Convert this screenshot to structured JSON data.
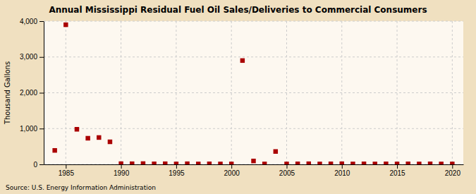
{
  "chart_data": {
    "type": "scatter",
    "title": "Annual Mississippi Residual Fuel Oil Sales/Deliveries to Commercial Consumers",
    "y_label": "Thousand Gallons",
    "annotations": [
      "Source: U.S. Energy Information Administration"
    ],
    "x": [
      1984,
      1985,
      1986,
      1987,
      1988,
      1989,
      1990,
      1991,
      1992,
      1993,
      1994,
      1995,
      1996,
      1997,
      1998,
      1999,
      2000,
      2001,
      2002,
      2003,
      2004,
      2005,
      2006,
      2007,
      2008,
      2009,
      2010,
      2011,
      2012,
      2013,
      2014,
      2015,
      2016,
      2017,
      2018,
      2019,
      2020
    ],
    "values": [
      390,
      3900,
      980,
      730,
      750,
      630,
      20,
      18,
      22,
      15,
      18,
      12,
      18,
      12,
      15,
      12,
      12,
      2900,
      95,
      12,
      360,
      12,
      15,
      18,
      12,
      15,
      18,
      12,
      15,
      12,
      15,
      12,
      15,
      12,
      15,
      12,
      12
    ],
    "color": "#aa0000",
    "marker": "square",
    "xlim": [
      1983,
      2021
    ],
    "ylim": [
      0,
      4000
    ],
    "xticks": [
      1985,
      1990,
      1995,
      2000,
      2005,
      2010,
      2015,
      2020
    ],
    "yticks": [
      0,
      {
        "value": 1000,
        "label": "1,000"
      },
      {
        "value": 2000,
        "label": "2,000"
      },
      {
        "value": 3000,
        "label": "3,000"
      },
      {
        "value": 4000,
        "label": "4,000"
      }
    ],
    "grid": true
  }
}
